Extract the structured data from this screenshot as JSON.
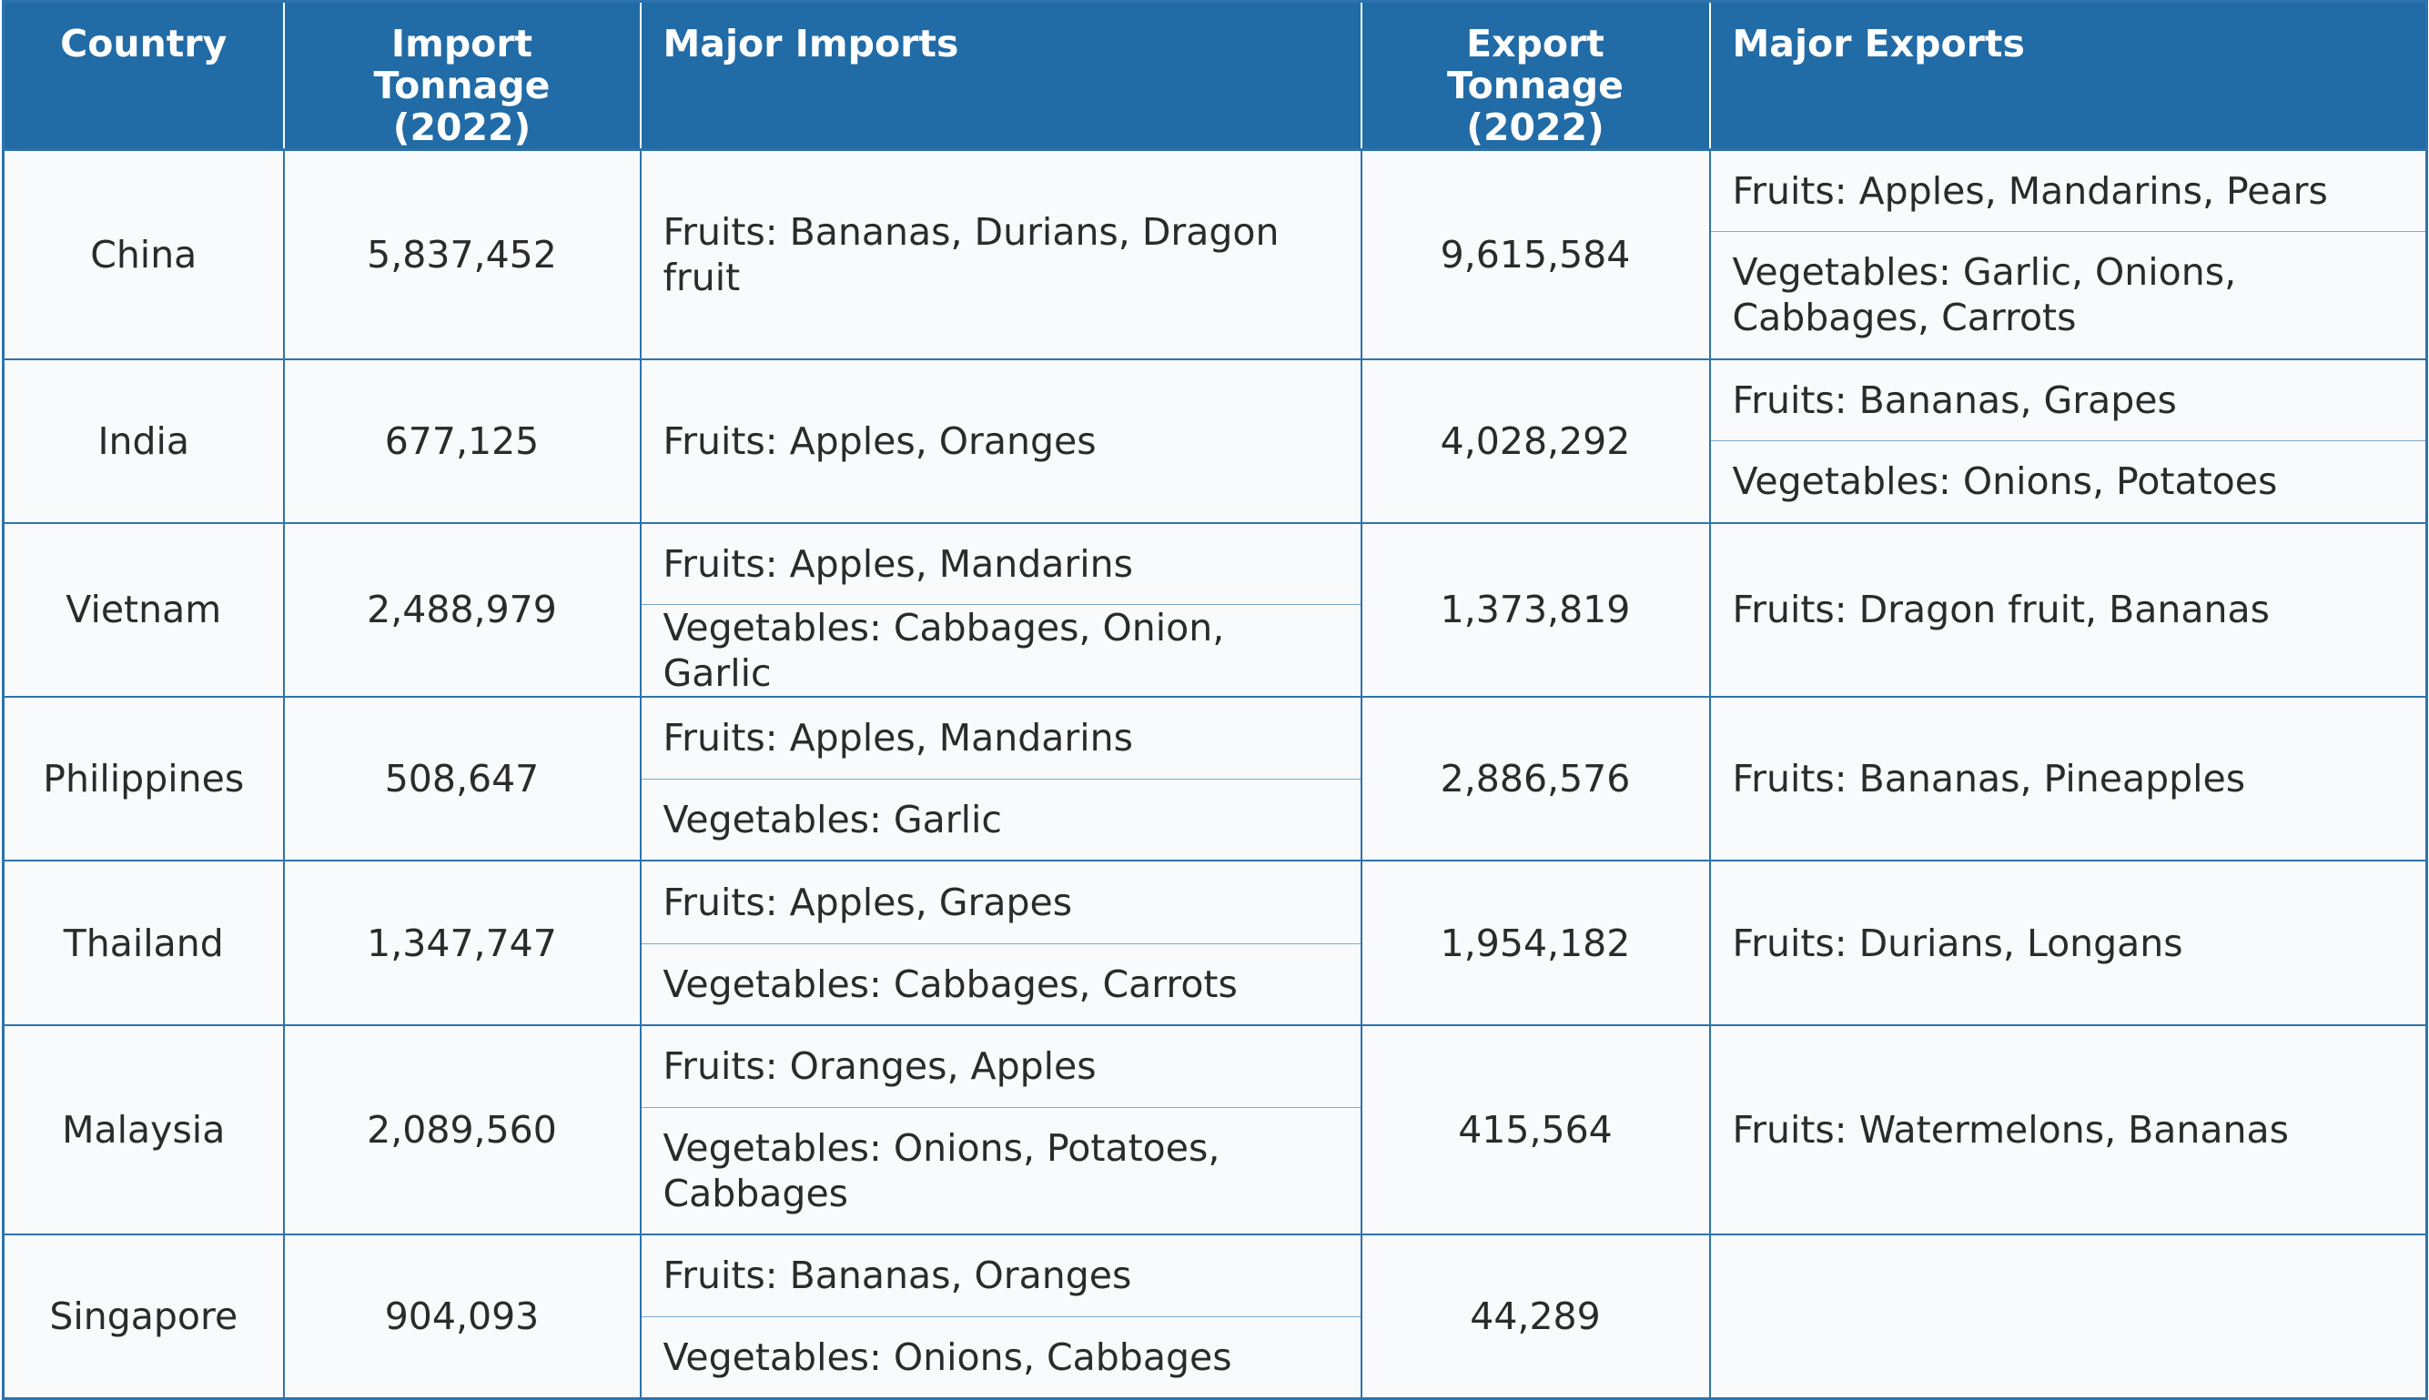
{
  "table": {
    "headers": {
      "country": "Country",
      "import_tonnage": "Import Tonnage (2022)",
      "major_imports": "Major Imports",
      "export_tonnage": "Export Tonnage (2022)",
      "major_exports": "Major Exports"
    },
    "rows": [
      {
        "country": "China",
        "import_tonnage": "5,837,452",
        "imports": [
          "Fruits: Bananas, Durians, Dragon fruit"
        ],
        "export_tonnage": "9,615,584",
        "exports": [
          "Fruits: Apples, Mandarins, Pears",
          "Vegetables: Garlic, Onions, Cabbages, Carrots"
        ]
      },
      {
        "country": "India",
        "import_tonnage": "677,125",
        "imports": [
          "Fruits: Apples, Oranges"
        ],
        "export_tonnage": "4,028,292",
        "exports": [
          "Fruits: Bananas, Grapes",
          "Vegetables: Onions, Potatoes"
        ]
      },
      {
        "country": "Vietnam",
        "import_tonnage": "2,488,979",
        "imports": [
          "Fruits: Apples, Mandarins",
          "Vegetables: Cabbages, Onion, Garlic"
        ],
        "export_tonnage": "1,373,819",
        "exports": [
          "Fruits: Dragon fruit, Bananas"
        ]
      },
      {
        "country": "Philippines",
        "import_tonnage": "508,647",
        "imports": [
          "Fruits: Apples, Mandarins",
          "Vegetables: Garlic"
        ],
        "export_tonnage": "2,886,576",
        "exports": [
          "Fruits: Bananas, Pineapples"
        ]
      },
      {
        "country": "Thailand",
        "import_tonnage": "1,347,747",
        "imports": [
          "Fruits: Apples, Grapes",
          "Vegetables: Cabbages, Carrots"
        ],
        "export_tonnage": "1,954,182",
        "exports": [
          "Fruits: Durians, Longans"
        ]
      },
      {
        "country": "Malaysia",
        "import_tonnage": "2,089,560",
        "imports": [
          "Fruits: Oranges, Apples",
          "Vegetables: Onions, Potatoes, Cabbages"
        ],
        "export_tonnage": "415,564",
        "exports": [
          "Fruits: Watermelons, Bananas"
        ]
      },
      {
        "country": "Singapore",
        "import_tonnage": "904,093",
        "imports": [
          "Fruits: Bananas, Oranges",
          "Vegetables: Onions, Cabbages"
        ],
        "export_tonnage": "44,289",
        "exports": [
          ""
        ]
      }
    ]
  },
  "colors": {
    "header_bg": "#216ba6",
    "border": "#2d73ad",
    "cell_bg": "#f8fafc",
    "text": "#2b2b2b"
  }
}
